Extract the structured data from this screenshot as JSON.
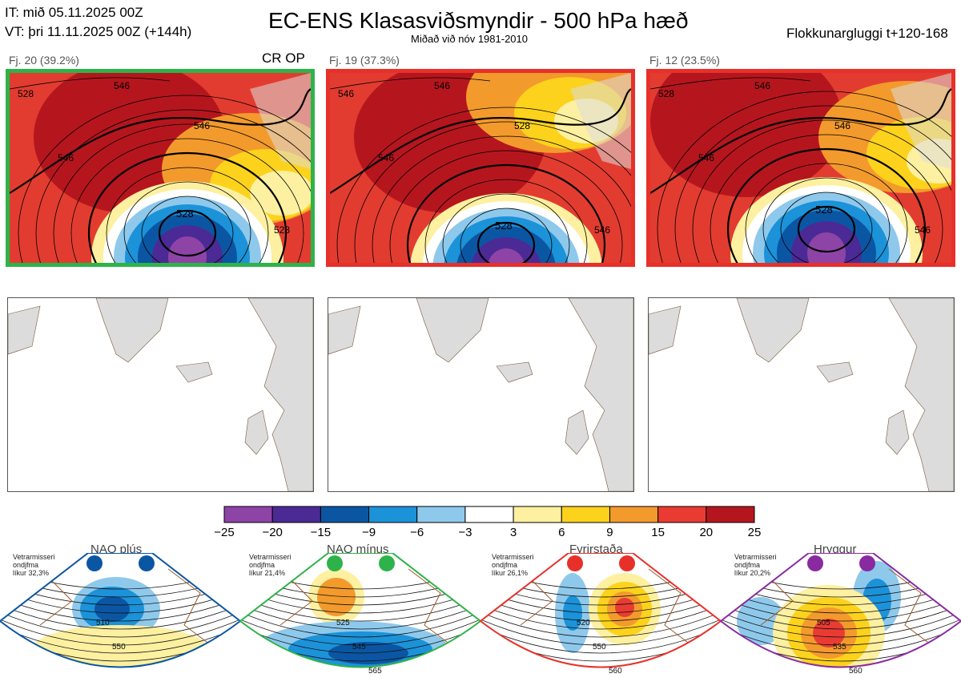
{
  "header": {
    "init_time": "IT: mið 05.11.2025 00Z",
    "valid_time": "VT: þri 11.11.2025 00Z  (+144h)",
    "title": "EC-ENS Klasasviðsmyndir - 500 hPa hæð",
    "subtitle": "Miðað við nóv 1981-2010",
    "window": "Flokkunargluggi t+120-168"
  },
  "clusters": [
    {
      "label": "Fj. 20 (39.2%)",
      "tag": "CR OP",
      "border_color": "#2db34a",
      "low_label": "528",
      "contour_labels": [
        "528",
        "546",
        "546",
        "546",
        "528"
      ]
    },
    {
      "label": "Fj. 19 (37.3%)",
      "tag": "",
      "border_color": "#e8302a",
      "low_label": "528",
      "contour_labels": [
        "546",
        "528",
        "546",
        "546",
        "546"
      ]
    },
    {
      "label": "Fj. 12 (23.5%)",
      "tag": "",
      "border_color": "#e8302a",
      "low_label": "528",
      "contour_labels": [
        "528",
        "546",
        "546",
        "546",
        "546"
      ]
    }
  ],
  "colorbar": {
    "ticks": [
      "−25",
      "−20",
      "−15",
      "−9",
      "−6",
      "−3",
      "3",
      "6",
      "9",
      "15",
      "20",
      "25"
    ],
    "colors": [
      "#8e44a6",
      "#4b2a96",
      "#0b56a3",
      "#1c92d8",
      "#8ec9ec",
      "#ffffff",
      "#fdf0a0",
      "#fcd21c",
      "#f39a2d",
      "#ea3b33",
      "#b5161e"
    ]
  },
  "regimes": [
    {
      "title": "NAO plús",
      "note_line1": "Vetrarmisseri",
      "note_line2": "ondjfma",
      "note_line3": "líkur 32,3%",
      "color": "#0b56a3",
      "labels": [
        "510",
        "550"
      ]
    },
    {
      "title": "NAO mínus",
      "note_line1": "Vetrarmisseri",
      "note_line2": "ondjfma",
      "note_line3": "líkur 21,4%",
      "color": "#2db34a",
      "labels": [
        "525",
        "545",
        "565"
      ]
    },
    {
      "title": "Fyrirstaða",
      "note_line1": "Vetrarmisseri",
      "note_line2": "ondjfma",
      "note_line3": "líkur 26,1%",
      "color": "#e8302a",
      "labels": [
        "520",
        "550",
        "560"
      ]
    },
    {
      "title": "Hryggur",
      "note_line1": "Vetrarmisseri",
      "note_line2": "ondjfma",
      "note_line3": "líkur 20,2%",
      "color": "#8a2aa0",
      "labels": [
        "505",
        "535",
        "560"
      ]
    }
  ],
  "chart_data": {
    "type": "heatmap",
    "title": "EC-ENS Klasasviðsmyndir - 500 hPa hæð",
    "subtitle": "Miðað við nóv 1981-2010",
    "legend_scale": [
      -25,
      -20,
      -15,
      -9,
      -6,
      -3,
      3,
      6,
      9,
      15,
      20,
      25
    ],
    "series": [
      {
        "name": "Fj. 20",
        "probability_percent": 39.2
      },
      {
        "name": "Fj. 19",
        "probability_percent": 37.3
      },
      {
        "name": "Fj. 12",
        "probability_percent": 23.5
      }
    ],
    "regime_climatology_percent": [
      {
        "name": "NAO plús",
        "value": 32.3
      },
      {
        "name": "NAO mínus",
        "value": 21.4
      },
      {
        "name": "Fyrirstaða",
        "value": 26.1
      },
      {
        "name": "Hryggur",
        "value": 20.2
      }
    ]
  }
}
